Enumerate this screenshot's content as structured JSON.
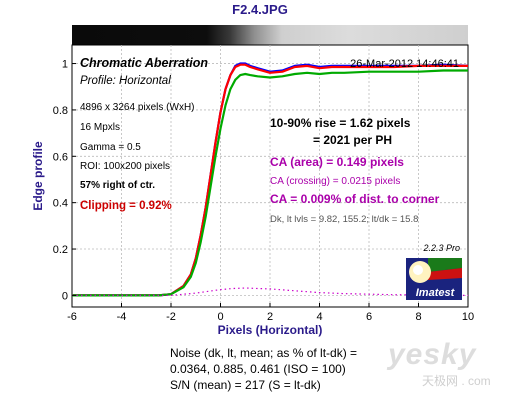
{
  "title": "F2.4.JPG",
  "chart_data": {
    "type": "line",
    "title": "Chromatic Aberration",
    "subtitle": "Profile: Horizontal",
    "timestamp": "26-Mar-2012 14:46:41",
    "xlabel": "Pixels (Horizontal)",
    "ylabel": "Edge profile",
    "xlim": [
      -6,
      10
    ],
    "ylim": [
      -0.05,
      1.08
    ],
    "xticks": [
      "-6",
      "-4",
      "-2",
      "0",
      "2",
      "4",
      "6",
      "8",
      "10"
    ],
    "yticks": [
      "0",
      "0.2",
      "0.4",
      "0.6",
      "0.8",
      "1"
    ],
    "grid": true,
    "info_left": [
      "4896 x 3264 pixels (WxH)",
      "16 Mpxls",
      "Gamma = 0.5",
      "ROI: 100x200 pixels",
      "57% right of ctr."
    ],
    "clipping": "Clipping =   0.92%",
    "results": [
      "10-90% rise = 1.62 pixels",
      "= 2021 per PH",
      "CA (area) = 0.149 pixels",
      "CA (crossing) = 0.0215 pixels",
      "CA = 0.009% of dist. to corner",
      "Dk, lt lvls = 9.82, 155.2;  lt/dk = 15.8"
    ],
    "version": "2.2.3  Pro",
    "logo_text": "Imatest",
    "series": [
      {
        "color": "#0000ff",
        "x": [
          -6,
          -2.5,
          -2,
          -1.5,
          -1.2,
          -1,
          -0.8,
          -0.6,
          -0.4,
          -0.2,
          0,
          0.2,
          0.4,
          0.6,
          0.8,
          1,
          1.2,
          1.5,
          2,
          2.5,
          3,
          3.5,
          4,
          4.5,
          5,
          6,
          7,
          8,
          9,
          10
        ],
        "y": [
          0.0,
          0.0,
          0.005,
          0.04,
          0.09,
          0.16,
          0.26,
          0.38,
          0.52,
          0.66,
          0.79,
          0.89,
          0.95,
          0.99,
          1.0,
          1.0,
          0.99,
          0.98,
          0.965,
          0.97,
          0.99,
          0.995,
          0.985,
          0.99,
          0.99,
          0.99,
          0.99,
          0.99,
          0.995,
          0.99
        ]
      },
      {
        "color": "#ff0000",
        "x": [
          -6,
          -2.5,
          -2,
          -1.5,
          -1.2,
          -1,
          -0.8,
          -0.6,
          -0.4,
          -0.2,
          0,
          0.2,
          0.4,
          0.6,
          0.8,
          1,
          1.2,
          1.5,
          2,
          2.5,
          3,
          3.5,
          4,
          4.5,
          5,
          6,
          7,
          8,
          9,
          10
        ],
        "y": [
          0.0,
          0.0,
          0.005,
          0.04,
          0.09,
          0.16,
          0.26,
          0.38,
          0.52,
          0.66,
          0.79,
          0.89,
          0.95,
          0.985,
          0.995,
          0.995,
          0.985,
          0.975,
          0.96,
          0.965,
          0.985,
          0.99,
          0.98,
          0.985,
          0.985,
          0.985,
          0.985,
          0.99,
          0.99,
          0.99
        ]
      },
      {
        "color": "#00aa00",
        "x": [
          -6,
          -2.5,
          -2,
          -1.5,
          -1.2,
          -1,
          -0.8,
          -0.6,
          -0.4,
          -0.2,
          0,
          0.2,
          0.4,
          0.6,
          0.8,
          1,
          1.2,
          1.5,
          2,
          2.5,
          3,
          3.5,
          4,
          4.5,
          5,
          6,
          7,
          8,
          9,
          10
        ],
        "y": [
          0.0,
          0.0,
          0.005,
          0.035,
          0.08,
          0.14,
          0.23,
          0.34,
          0.47,
          0.6,
          0.72,
          0.82,
          0.89,
          0.93,
          0.95,
          0.955,
          0.95,
          0.945,
          0.94,
          0.945,
          0.955,
          0.96,
          0.955,
          0.96,
          0.96,
          0.965,
          0.965,
          0.965,
          0.97,
          0.97
        ]
      },
      {
        "color": "#cc00cc",
        "dashed": true,
        "x": [
          -6,
          -3,
          -2,
          -1,
          0,
          0.5,
          1,
          1.5,
          2,
          3,
          4,
          5,
          6,
          7,
          8,
          9,
          10
        ],
        "y": [
          0.0,
          0.0,
          0.0,
          0.01,
          0.025,
          0.03,
          0.032,
          0.03,
          0.028,
          0.02,
          0.012,
          0.008,
          0.005,
          0.003,
          0.002,
          0.001,
          0.0
        ]
      }
    ]
  },
  "noise": {
    "line1": "Noise (dk, lt, mean; as % of lt-dk) =",
    "line2": "0.0364,  0.885,  0.461   (ISO =  100)",
    "line3": "S/N (mean) = 217   (S = lt-dk)"
  },
  "watermark": {
    "main": "yesky",
    "sub": "天极网 . com"
  }
}
